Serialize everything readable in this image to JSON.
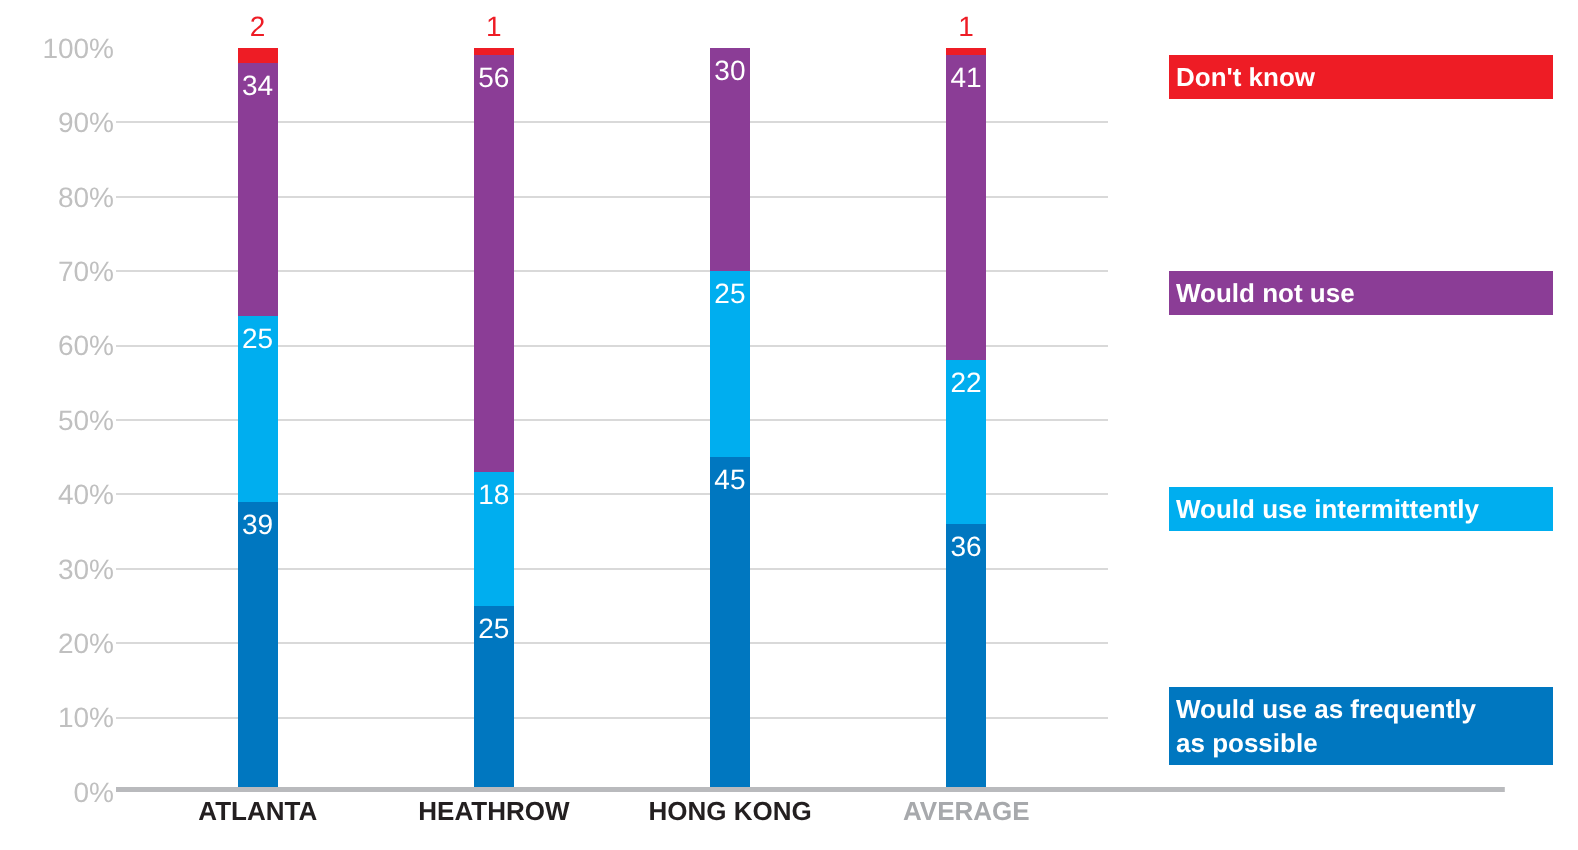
{
  "chart_data": {
    "type": "bar",
    "stacked": true,
    "categories": [
      "ATLANTA",
      "HEATHROW",
      "HONG KONG",
      "AVERAGE"
    ],
    "series": [
      {
        "name": "Would use as frequently as possible",
        "color": "#0077c0",
        "values": [
          39,
          25,
          45,
          36
        ],
        "value_labels": [
          "39",
          "25",
          "45",
          "36"
        ]
      },
      {
        "name": "Would use intermittently",
        "color": "#00aeef",
        "values": [
          25,
          18,
          25,
          22
        ],
        "value_labels": [
          "25",
          "18",
          "25",
          "22"
        ]
      },
      {
        "name": "Would not use",
        "color": "#8b3d96",
        "values": [
          34,
          56,
          30,
          41
        ],
        "value_labels": [
          "34",
          "56",
          "30",
          "41"
        ]
      },
      {
        "name": "Don't know",
        "color": "#ee1c25",
        "values": [
          2,
          1,
          null,
          1
        ],
        "value_labels": [
          "2",
          "1",
          null,
          "1"
        ]
      }
    ],
    "ylim": [
      0,
      100
    ],
    "yticks": [
      {
        "value": 0,
        "label": "0%"
      },
      {
        "value": 10,
        "label": "10%"
      },
      {
        "value": 20,
        "label": "20%"
      },
      {
        "value": 30,
        "label": "30%"
      },
      {
        "value": 40,
        "label": "40%"
      },
      {
        "value": 50,
        "label": "50%"
      },
      {
        "value": 60,
        "label": "60%"
      },
      {
        "value": 70,
        "label": "70%"
      },
      {
        "value": 80,
        "label": "80%"
      },
      {
        "value": 90,
        "label": "90%"
      },
      {
        "value": 100,
        "label": "100%"
      }
    ],
    "grid": "y",
    "legend": "right"
  }
}
